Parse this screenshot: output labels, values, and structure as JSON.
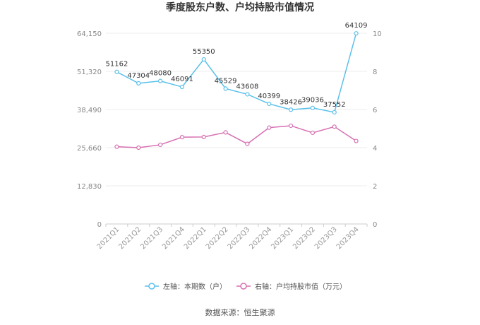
{
  "chart_data": {
    "type": "line",
    "title": "季度股东户数、户均持股市值情况",
    "categories": [
      "2021Q1",
      "2021Q2",
      "2021Q3",
      "2021Q4",
      "2022Q1",
      "2022Q2",
      "2022Q3",
      "2022Q4",
      "2023Q1",
      "2023Q2",
      "2023Q3",
      "2023Q4"
    ],
    "y_left": {
      "ticks": [
        "0",
        "12,830",
        "25,660",
        "38,490",
        "51,320",
        "64,150"
      ],
      "ylim": [
        0,
        64150
      ]
    },
    "y_right": {
      "ticks": [
        "0",
        "2",
        "4",
        "6",
        "8",
        "10"
      ],
      "ylim": [
        0,
        10
      ]
    },
    "series": [
      {
        "name": "左轴：本期数（户）",
        "axis": "left",
        "color": "#5bc0eb",
        "values": [
          51162,
          47304,
          48080,
          46091,
          55350,
          45529,
          43608,
          40399,
          38426,
          39036,
          37552,
          64109
        ],
        "labels": [
          "51162",
          "47304",
          "48080",
          "46091",
          "55350",
          "45529",
          "43608",
          "40399",
          "38426",
          "39036",
          "37552",
          "64109"
        ]
      },
      {
        "name": "右轴：户均持股市值（万元）",
        "axis": "right",
        "color": "#d670b2",
        "values": [
          4.05,
          4.0,
          4.15,
          4.55,
          4.56,
          4.8,
          4.2,
          5.05,
          5.15,
          4.78,
          5.1,
          4.35
        ]
      }
    ],
    "grid": true,
    "legend_position": "bottom"
  },
  "source_text": "数据来源：恒生聚源"
}
